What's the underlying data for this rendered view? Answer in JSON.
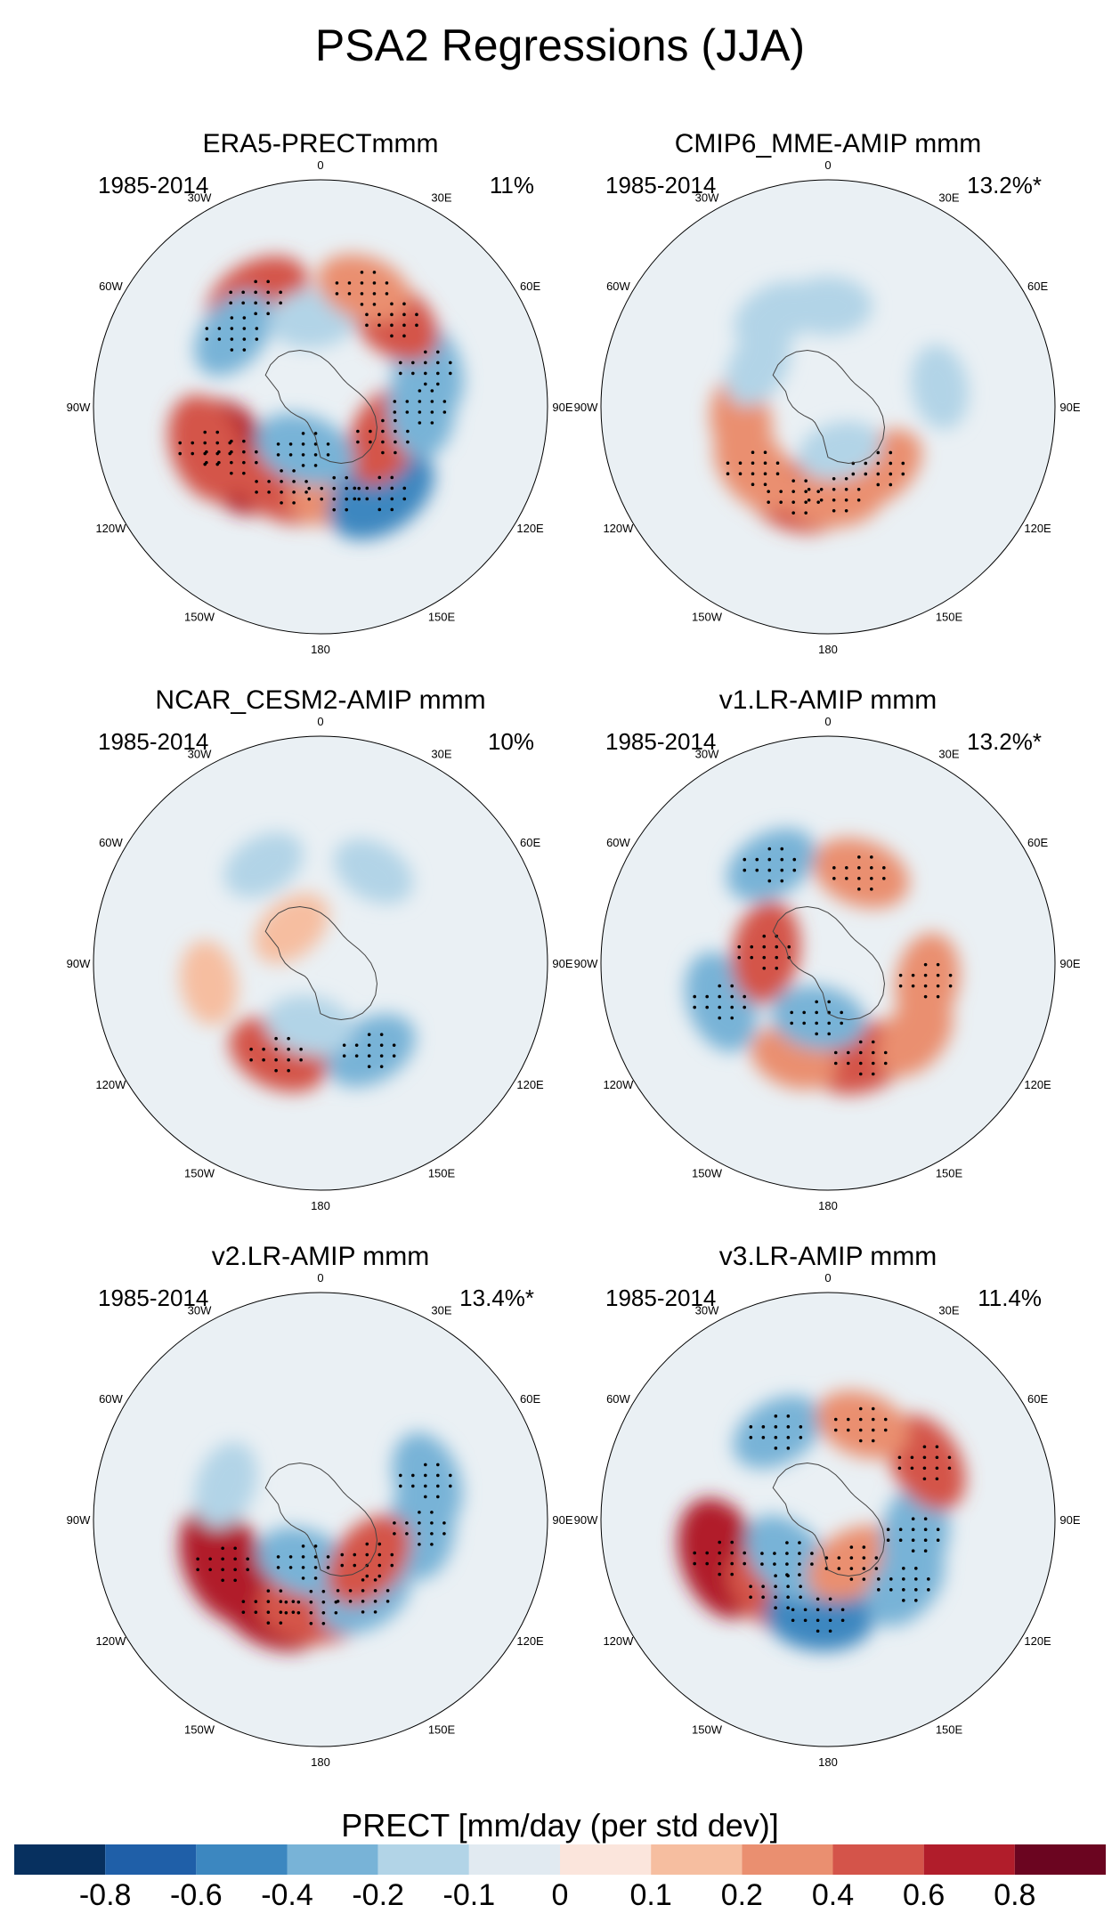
{
  "title": "PSA2 Regressions (JJA)",
  "panels": [
    {
      "title": "ERA5-PRECTmmm",
      "period": "1985-2014",
      "pct": "11%",
      "blobs": [
        {
          "lon": 240,
          "lat": -50,
          "value": 0.7
        },
        {
          "lon": 250,
          "lat": -42,
          "value": 0.5
        },
        {
          "lon": 205,
          "lat": -55,
          "value": 0.4
        },
        {
          "lon": 170,
          "lat": -55,
          "value": 0.3
        },
        {
          "lon": 145,
          "lat": -48,
          "value": -0.6
        },
        {
          "lon": 115,
          "lat": -62,
          "value": 0.4
        },
        {
          "lon": 90,
          "lat": -50,
          "value": -0.4
        },
        {
          "lon": 70,
          "lat": -45,
          "value": -0.4
        },
        {
          "lon": 330,
          "lat": -40,
          "value": 0.5
        },
        {
          "lon": 310,
          "lat": -45,
          "value": -0.3
        },
        {
          "lon": 200,
          "lat": -72,
          "value": -0.4
        },
        {
          "lon": 40,
          "lat": -45,
          "value": 0.4
        },
        {
          "lon": 355,
          "lat": -55,
          "value": -0.2
        },
        {
          "lon": 20,
          "lat": -40,
          "value": 0.3
        }
      ]
    },
    {
      "title": "CMIP6_MME-AMIP  mmm",
      "period": "1985-2014",
      "pct": "13.2%*",
      "blobs": [
        {
          "lon": 200,
          "lat": -52,
          "value": 0.4
        },
        {
          "lon": 175,
          "lat": -55,
          "value": 0.35
        },
        {
          "lon": 230,
          "lat": -52,
          "value": 0.35
        },
        {
          "lon": 140,
          "lat": -58,
          "value": 0.3
        },
        {
          "lon": 260,
          "lat": -55,
          "value": 0.25
        },
        {
          "lon": 165,
          "lat": -72,
          "value": -0.15
        },
        {
          "lon": 0,
          "lat": -50,
          "value": -0.2
        },
        {
          "lon": 330,
          "lat": -48,
          "value": -0.2
        },
        {
          "lon": 80,
          "lat": -45,
          "value": -0.15
        },
        {
          "lon": 300,
          "lat": -58,
          "value": -0.15
        }
      ]
    },
    {
      "title": "NCAR_CESM2-AMIP  mmm",
      "period": "1985-2014",
      "pct": "10%",
      "blobs": [
        {
          "lon": 205,
          "lat": -50,
          "value": 0.4
        },
        {
          "lon": 150,
          "lat": -50,
          "value": -0.3
        },
        {
          "lon": 190,
          "lat": -65,
          "value": -0.2
        },
        {
          "lon": 320,
          "lat": -72,
          "value": 0.15
        },
        {
          "lon": 260,
          "lat": -45,
          "value": 0.15
        },
        {
          "lon": 330,
          "lat": -45,
          "value": -0.15
        },
        {
          "lon": 30,
          "lat": -48,
          "value": -0.15
        }
      ]
    },
    {
      "title": "v1.LR-AMIP  mmm",
      "period": "1985-2014",
      "pct": "13.2%*",
      "blobs": [
        {
          "lon": 250,
          "lat": -45,
          "value": -0.4
        },
        {
          "lon": 280,
          "lat": -65,
          "value": 0.4
        },
        {
          "lon": 160,
          "lat": -50,
          "value": 0.4
        },
        {
          "lon": 200,
          "lat": -50,
          "value": 0.2
        },
        {
          "lon": 190,
          "lat": -68,
          "value": -0.3
        },
        {
          "lon": 20,
          "lat": -52,
          "value": 0.35
        },
        {
          "lon": 330,
          "lat": -45,
          "value": -0.3
        },
        {
          "lon": 100,
          "lat": -50,
          "value": 0.3
        },
        {
          "lon": 130,
          "lat": -45,
          "value": 0.25
        }
      ]
    },
    {
      "title": "v2.LR-AMIP  mmm",
      "period": "1985-2014",
      "pct": "13.4%*",
      "blobs": [
        {
          "lon": 245,
          "lat": -48,
          "value": 0.7
        },
        {
          "lon": 210,
          "lat": -50,
          "value": 0.6
        },
        {
          "lon": 185,
          "lat": -55,
          "value": 0.5
        },
        {
          "lon": 150,
          "lat": -55,
          "value": -0.35
        },
        {
          "lon": 95,
          "lat": -50,
          "value": -0.4
        },
        {
          "lon": 70,
          "lat": -45,
          "value": -0.35
        },
        {
          "lon": 200,
          "lat": -72,
          "value": -0.35
        },
        {
          "lon": 130,
          "lat": -65,
          "value": 0.4
        },
        {
          "lon": 290,
          "lat": -50,
          "value": -0.2
        }
      ]
    },
    {
      "title": "v3.LR-AMIP  mmm",
      "period": "1985-2014",
      "pct": "11.4%",
      "blobs": [
        {
          "lon": 250,
          "lat": -45,
          "value": 0.7
        },
        {
          "lon": 215,
          "lat": -55,
          "value": 0.5
        },
        {
          "lon": 185,
          "lat": -52,
          "value": -0.5
        },
        {
          "lon": 225,
          "lat": -68,
          "value": -0.4
        },
        {
          "lon": 150,
          "lat": -70,
          "value": 0.35
        },
        {
          "lon": 100,
          "lat": -55,
          "value": -0.4
        },
        {
          "lon": 60,
          "lat": -45,
          "value": 0.4
        },
        {
          "lon": 330,
          "lat": -50,
          "value": -0.3
        },
        {
          "lon": 20,
          "lat": -50,
          "value": 0.3
        },
        {
          "lon": 130,
          "lat": -50,
          "value": -0.3
        }
      ]
    }
  ],
  "lon_labels": [
    "0",
    "30E",
    "60E",
    "90E",
    "120E",
    "150E",
    "180",
    "150W",
    "120W",
    "90W",
    "60W",
    "30W"
  ],
  "colorbar": {
    "title": "PRECT [mm/day (per std dev)]",
    "colors": [
      "#07305f",
      "#1f5fa8",
      "#3c87c0",
      "#78b3d7",
      "#b2d4e7",
      "#e1eaf1",
      "#fbe5dc",
      "#f6bea0",
      "#ea8f70",
      "#d4544a",
      "#b11d2b",
      "#6b0520"
    ],
    "ticks": [
      "-0.8",
      "-0.6",
      "-0.4",
      "-0.2",
      "-0.1",
      "0",
      "0.1",
      "0.2",
      "0.4",
      "0.6",
      "0.8"
    ]
  }
}
